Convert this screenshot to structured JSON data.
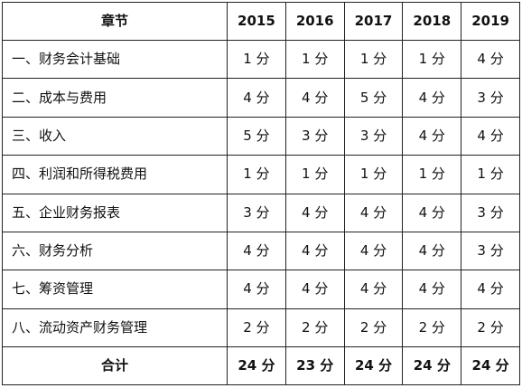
{
  "table": {
    "header": {
      "chapter_label": "章节",
      "years": [
        "2015",
        "2016",
        "2017",
        "2018",
        "2019"
      ]
    },
    "rows": [
      {
        "chapter": "一、财务会计基础",
        "scores": [
          "1 分",
          "1 分",
          "1 分",
          "1 分",
          "4 分"
        ]
      },
      {
        "chapter": "二、成本与费用",
        "scores": [
          "4 分",
          "4 分",
          "5 分",
          "4 分",
          "3 分"
        ]
      },
      {
        "chapter": "三、收入",
        "scores": [
          "5 分",
          "3 分",
          "3 分",
          "4 分",
          "4 分"
        ]
      },
      {
        "chapter": "四、利润和所得税费用",
        "scores": [
          "1 分",
          "1 分",
          "1 分",
          "1 分",
          "1 分"
        ]
      },
      {
        "chapter": "五、企业财务报表",
        "scores": [
          "3 分",
          "4 分",
          "4 分",
          "4 分",
          "3 分"
        ]
      },
      {
        "chapter": "六、财务分析",
        "scores": [
          "4 分",
          "4 分",
          "4 分",
          "4 分",
          "3 分"
        ]
      },
      {
        "chapter": "七、筹资管理",
        "scores": [
          "4 分",
          "4 分",
          "4 分",
          "4 分",
          "4 分"
        ]
      },
      {
        "chapter": "八、流动资产财务管理",
        "scores": [
          "2 分",
          "2 分",
          "2 分",
          "2 分",
          "2 分"
        ]
      }
    ],
    "footer": {
      "total_label": "合计",
      "totals": [
        "24 分",
        "23 分",
        "24 分",
        "24 分",
        "24 分"
      ]
    }
  }
}
